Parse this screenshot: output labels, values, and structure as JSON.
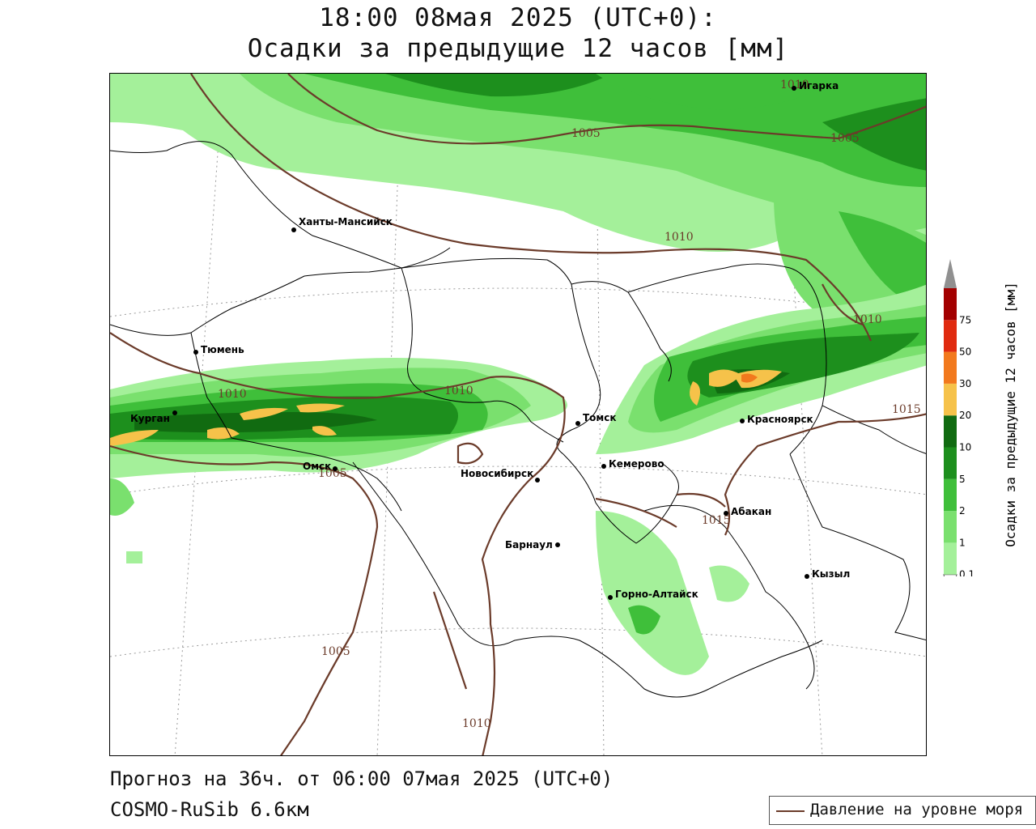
{
  "title": {
    "line1": "18:00 08мая 2025 (UTC+0):",
    "line2": "Осадки за предыдущие 12 часов [мм]"
  },
  "footer": {
    "forecast": "Прогноз на 36ч. от 06:00 07мая 2025 (UTC+0)",
    "model": "COSMO-RuSib 6.6км"
  },
  "legend": {
    "pressure_label": "Давление на уровне моря",
    "pressure_color": "#6b3b2a"
  },
  "colorbar": {
    "title": "Осадки за предыдущие 12 часов [мм]",
    "ticks": [
      "0.1",
      "1",
      "2",
      "5",
      "10",
      "20",
      "30",
      "50",
      "75"
    ],
    "colors": [
      "#a4f09a",
      "#7ae06e",
      "#3fbf3a",
      "#1d8f1d",
      "#116b11",
      "#f6c24a",
      "#f2791d",
      "#e02a0f",
      "#a30000",
      "#909090"
    ]
  },
  "cities": [
    {
      "name": "Ханты-Мансийск"
    },
    {
      "name": "Тюмень"
    },
    {
      "name": "Курган"
    },
    {
      "name": "Омск"
    },
    {
      "name": "Новосибирск"
    },
    {
      "name": "Томск"
    },
    {
      "name": "Кемерово"
    },
    {
      "name": "Красноярск"
    },
    {
      "name": "Абакан"
    },
    {
      "name": "Барнаул"
    },
    {
      "name": "Горно-Алтайск"
    },
    {
      "name": "Кызыл"
    },
    {
      "name": "Игарка"
    }
  ],
  "isobar_labels": [
    "1005",
    "1005",
    "1010",
    "1010",
    "1010",
    "1010",
    "1005",
    "1015",
    "1015",
    "1005",
    "1010",
    "1010"
  ]
}
